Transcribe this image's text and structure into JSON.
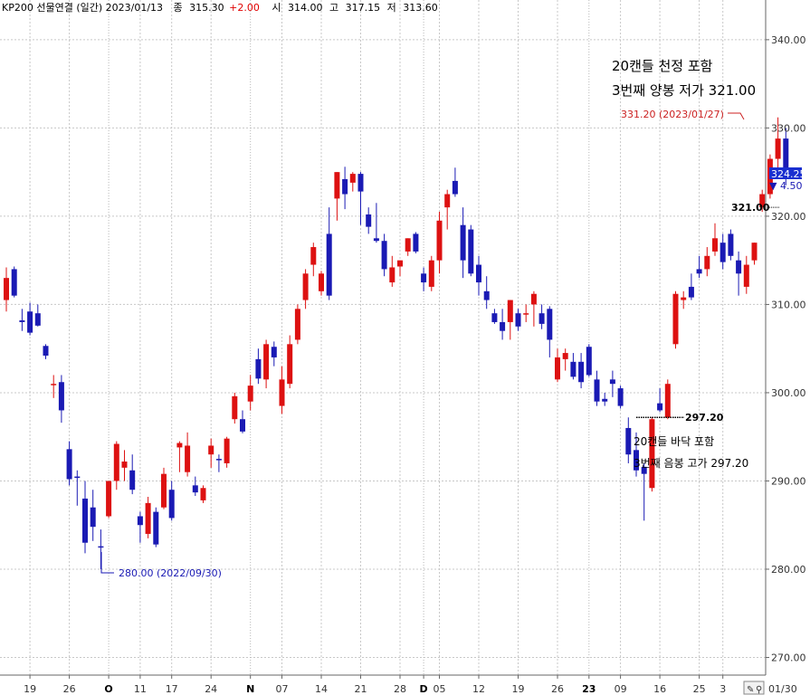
{
  "header": {
    "symbol": "KP200 선물연결 (일간) 2023/01/13",
    "close_label": "종",
    "close": "315.30",
    "change": "+2.00",
    "open_label": "시",
    "open": "314.00",
    "high_label": "고",
    "high": "317.15",
    "low_label": "저",
    "low": "313.60"
  },
  "current": {
    "price": "324.25",
    "change": "▼ 4.50"
  },
  "corner": {
    "date": "01/30"
  },
  "colors": {
    "up": "#dd1111",
    "down": "#1a1ab4",
    "grid": "#c8c8c8"
  },
  "annotations": {
    "top_line1": "20캔들 천정 포함",
    "top_line2": "3번째 양봉 저가 321.00",
    "high_label": "331.20 (2023/01/27)",
    "top_level": "321.00",
    "bottom_level": "297.20",
    "bottom_line1": "20캔들 바닥 포함",
    "bottom_line2": "3번째 음봉 고가 297.20",
    "low_label": "280.00 (2022/09/30)"
  },
  "chart_data": {
    "type": "candlestick",
    "title": "KP200 선물연결 (일간)",
    "y_ticks": [
      "340.00",
      "330.00",
      "320.00",
      "310.00",
      "300.00",
      "290.00",
      "280.00",
      "270.00"
    ],
    "ylim": [
      268,
      344.5
    ],
    "x_ticks": [
      {
        "label": "19",
        "i": 3,
        "bold": false
      },
      {
        "label": "26",
        "i": 8,
        "bold": false
      },
      {
        "label": "O",
        "i": 13,
        "bold": true
      },
      {
        "label": "11",
        "i": 17,
        "bold": false
      },
      {
        "label": "17",
        "i": 21,
        "bold": false
      },
      {
        "label": "24",
        "i": 26,
        "bold": false
      },
      {
        "label": "N",
        "i": 31,
        "bold": true
      },
      {
        "label": "07",
        "i": 35,
        "bold": false
      },
      {
        "label": "14",
        "i": 40,
        "bold": false
      },
      {
        "label": "21",
        "i": 45,
        "bold": false
      },
      {
        "label": "28",
        "i": 50,
        "bold": false
      },
      {
        "label": "D",
        "i": 53,
        "bold": true
      },
      {
        "label": "05",
        "i": 55,
        "bold": false
      },
      {
        "label": "12",
        "i": 60,
        "bold": false
      },
      {
        "label": "19",
        "i": 65,
        "bold": false
      },
      {
        "label": "26",
        "i": 70,
        "bold": false
      },
      {
        "label": "23",
        "i": 74,
        "bold": true
      },
      {
        "label": "09",
        "i": 78,
        "bold": false
      },
      {
        "label": "16",
        "i": 83,
        "bold": false
      },
      {
        "label": "25",
        "i": 88,
        "bold": false
      },
      {
        "label": "3",
        "i": 91,
        "bold": false
      }
    ],
    "candles": [
      {
        "o": 310.5,
        "h": 314.2,
        "l": 309.2,
        "c": 313.0
      },
      {
        "o": 314.0,
        "h": 314.3,
        "l": 310.8,
        "c": 311.0
      },
      {
        "o": 308.2,
        "h": 309.5,
        "l": 307.0,
        "c": 308.0
      },
      {
        "o": 309.2,
        "h": 310.2,
        "l": 306.5,
        "c": 306.8
      },
      {
        "o": 309.0,
        "h": 310.0,
        "l": 307.5,
        "c": 307.6
      },
      {
        "o": 305.3,
        "h": 305.5,
        "l": 303.8,
        "c": 304.2
      },
      {
        "o": 301.0,
        "h": 302.0,
        "l": 299.4,
        "c": 301.0
      },
      {
        "o": 301.2,
        "h": 302.0,
        "l": 296.6,
        "c": 298.0
      },
      {
        "o": 293.6,
        "h": 294.5,
        "l": 289.5,
        "c": 290.2
      },
      {
        "o": 290.5,
        "h": 291.2,
        "l": 287.2,
        "c": 290.4
      },
      {
        "o": 288.0,
        "h": 290.0,
        "l": 281.8,
        "c": 283.0
      },
      {
        "o": 287.0,
        "h": 289.0,
        "l": 283.2,
        "c": 284.8
      },
      {
        "o": 282.6,
        "h": 284.5,
        "l": 280.0,
        "c": 282.5
      },
      {
        "o": 286.0,
        "h": 290.0,
        "l": 285.8,
        "c": 290.0
      },
      {
        "o": 290.0,
        "h": 294.5,
        "l": 289.0,
        "c": 294.2
      },
      {
        "o": 291.5,
        "h": 293.5,
        "l": 290.0,
        "c": 292.2
      },
      {
        "o": 291.2,
        "h": 293.0,
        "l": 288.5,
        "c": 289.0
      },
      {
        "o": 286.0,
        "h": 286.5,
        "l": 283.0,
        "c": 285.0
      },
      {
        "o": 284.0,
        "h": 288.2,
        "l": 283.5,
        "c": 287.5
      },
      {
        "o": 286.5,
        "h": 287.0,
        "l": 282.5,
        "c": 282.8
      },
      {
        "o": 287.0,
        "h": 291.5,
        "l": 286.8,
        "c": 290.8
      },
      {
        "o": 289.0,
        "h": 290.0,
        "l": 285.5,
        "c": 285.8
      },
      {
        "o": 293.8,
        "h": 294.5,
        "l": 291.0,
        "c": 294.3
      },
      {
        "o": 291.0,
        "h": 295.5,
        "l": 290.5,
        "c": 294.0
      },
      {
        "o": 289.5,
        "h": 290.5,
        "l": 288.3,
        "c": 288.7
      },
      {
        "o": 287.8,
        "h": 289.5,
        "l": 287.5,
        "c": 289.2
      },
      {
        "o": 293.0,
        "h": 294.8,
        "l": 291.5,
        "c": 294.0
      },
      {
        "o": 292.5,
        "h": 293.0,
        "l": 291.0,
        "c": 292.4
      },
      {
        "o": 292.0,
        "h": 295.0,
        "l": 291.5,
        "c": 294.8
      },
      {
        "o": 297.0,
        "h": 300.0,
        "l": 296.5,
        "c": 299.6
      },
      {
        "o": 297.0,
        "h": 298.0,
        "l": 295.4,
        "c": 295.6
      },
      {
        "o": 299.0,
        "h": 302.0,
        "l": 298.0,
        "c": 300.8
      },
      {
        "o": 303.8,
        "h": 305.0,
        "l": 301.0,
        "c": 301.6
      },
      {
        "o": 301.5,
        "h": 306.0,
        "l": 300.5,
        "c": 305.5
      },
      {
        "o": 305.2,
        "h": 305.8,
        "l": 303.0,
        "c": 304.0
      },
      {
        "o": 298.5,
        "h": 303.0,
        "l": 297.6,
        "c": 301.5
      },
      {
        "o": 301.0,
        "h": 306.5,
        "l": 300.5,
        "c": 305.5
      },
      {
        "o": 306.0,
        "h": 310.0,
        "l": 305.5,
        "c": 309.5
      },
      {
        "o": 310.5,
        "h": 314.0,
        "l": 309.5,
        "c": 313.5
      },
      {
        "o": 314.5,
        "h": 317.0,
        "l": 313.2,
        "c": 316.5
      },
      {
        "o": 311.5,
        "h": 313.8,
        "l": 311.0,
        "c": 313.5
      },
      {
        "o": 318.0,
        "h": 321.0,
        "l": 310.5,
        "c": 311.0
      },
      {
        "o": 322.0,
        "h": 325.0,
        "l": 319.5,
        "c": 325.0
      },
      {
        "o": 324.2,
        "h": 325.6,
        "l": 320.8,
        "c": 322.5
      },
      {
        "o": 323.8,
        "h": 325.0,
        "l": 322.8,
        "c": 324.8
      },
      {
        "o": 324.8,
        "h": 325.0,
        "l": 319.0,
        "c": 322.8
      },
      {
        "o": 320.2,
        "h": 321.0,
        "l": 318.0,
        "c": 318.8
      },
      {
        "o": 317.5,
        "h": 321.5,
        "l": 317.0,
        "c": 317.2
      },
      {
        "o": 317.2,
        "h": 318.0,
        "l": 313.2,
        "c": 314.0
      },
      {
        "o": 312.5,
        "h": 315.5,
        "l": 312.0,
        "c": 314.2
      },
      {
        "o": 314.3,
        "h": 315.0,
        "l": 313.2,
        "c": 315.0
      },
      {
        "o": 316.0,
        "h": 317.5,
        "l": 315.5,
        "c": 317.5
      },
      {
        "o": 318.0,
        "h": 318.2,
        "l": 315.8,
        "c": 316.0
      },
      {
        "o": 313.5,
        "h": 314.2,
        "l": 311.5,
        "c": 312.5
      },
      {
        "o": 312.0,
        "h": 315.5,
        "l": 311.5,
        "c": 315.0
      },
      {
        "o": 315.0,
        "h": 320.5,
        "l": 313.5,
        "c": 319.5
      },
      {
        "o": 321.0,
        "h": 323.0,
        "l": 318.5,
        "c": 322.5
      },
      {
        "o": 324.0,
        "h": 325.5,
        "l": 322.2,
        "c": 322.5
      },
      {
        "o": 319.0,
        "h": 321.0,
        "l": 313.0,
        "c": 315.0
      },
      {
        "o": 318.5,
        "h": 319.0,
        "l": 313.2,
        "c": 313.5
      },
      {
        "o": 314.5,
        "h": 315.5,
        "l": 311.0,
        "c": 312.5
      },
      {
        "o": 311.5,
        "h": 313.2,
        "l": 309.5,
        "c": 310.5
      },
      {
        "o": 309.0,
        "h": 309.5,
        "l": 307.8,
        "c": 308.0
      },
      {
        "o": 308.0,
        "h": 309.5,
        "l": 306.0,
        "c": 307.0
      },
      {
        "o": 308.0,
        "h": 310.5,
        "l": 306.0,
        "c": 310.5
      },
      {
        "o": 309.0,
        "h": 309.5,
        "l": 307.0,
        "c": 307.5
      },
      {
        "o": 309.0,
        "h": 310.0,
        "l": 308.0,
        "c": 309.0
      },
      {
        "o": 310.0,
        "h": 311.5,
        "l": 307.5,
        "c": 311.2
      },
      {
        "o": 309.0,
        "h": 310.0,
        "l": 307.2,
        "c": 307.8
      },
      {
        "o": 309.5,
        "h": 309.8,
        "l": 304.0,
        "c": 306.0
      },
      {
        "o": 301.5,
        "h": 305.0,
        "l": 301.2,
        "c": 304.0
      },
      {
        "o": 303.8,
        "h": 305.0,
        "l": 302.5,
        "c": 304.5
      },
      {
        "o": 303.5,
        "h": 304.5,
        "l": 301.5,
        "c": 301.8
      },
      {
        "o": 303.5,
        "h": 304.5,
        "l": 300.5,
        "c": 301.2
      },
      {
        "o": 305.2,
        "h": 305.5,
        "l": 301.8,
        "c": 302.0
      },
      {
        "o": 301.5,
        "h": 302.5,
        "l": 298.5,
        "c": 299.0
      },
      {
        "o": 299.3,
        "h": 300.0,
        "l": 298.5,
        "c": 299.0
      },
      {
        "o": 301.5,
        "h": 302.5,
        "l": 299.5,
        "c": 301.0
      },
      {
        "o": 300.5,
        "h": 300.8,
        "l": 298.2,
        "c": 298.5
      },
      {
        "o": 296.0,
        "h": 297.2,
        "l": 292.0,
        "c": 293.0
      },
      {
        "o": 293.5,
        "h": 295.5,
        "l": 290.5,
        "c": 291.2
      },
      {
        "o": 291.6,
        "h": 292.0,
        "l": 285.5,
        "c": 290.8
      },
      {
        "o": 289.2,
        "h": 297.2,
        "l": 288.8,
        "c": 297.0
      },
      {
        "o": 298.8,
        "h": 300.5,
        "l": 297.8,
        "c": 298.0
      },
      {
        "o": 297.2,
        "h": 301.5,
        "l": 297.0,
        "c": 301.0
      },
      {
        "o": 305.5,
        "h": 311.5,
        "l": 305.0,
        "c": 311.2
      },
      {
        "o": 310.5,
        "h": 311.5,
        "l": 309.5,
        "c": 310.8
      },
      {
        "o": 312.0,
        "h": 313.5,
        "l": 310.5,
        "c": 310.8
      },
      {
        "o": 314.0,
        "h": 315.5,
        "l": 313.0,
        "c": 313.5
      },
      {
        "o": 314.0,
        "h": 316.5,
        "l": 313.2,
        "c": 315.5
      },
      {
        "o": 316.0,
        "h": 319.2,
        "l": 315.5,
        "c": 317.5
      },
      {
        "o": 317.0,
        "h": 318.0,
        "l": 314.0,
        "c": 314.8
      },
      {
        "o": 318.0,
        "h": 318.5,
        "l": 315.0,
        "c": 315.5
      },
      {
        "o": 315.0,
        "h": 316.0,
        "l": 311.0,
        "c": 313.5
      },
      {
        "o": 312.0,
        "h": 315.5,
        "l": 311.2,
        "c": 314.5
      },
      {
        "o": 315.0,
        "h": 317.0,
        "l": 314.5,
        "c": 317.0
      },
      {
        "o": 321.0,
        "h": 323.0,
        "l": 320.5,
        "c": 322.5
      },
      {
        "o": 322.5,
        "h": 327.0,
        "l": 322.0,
        "c": 326.5
      },
      {
        "o": 326.5,
        "h": 331.2,
        "l": 325.5,
        "c": 328.8
      },
      {
        "o": 328.8,
        "h": 330.0,
        "l": 323.5,
        "c": 324.25
      }
    ]
  }
}
